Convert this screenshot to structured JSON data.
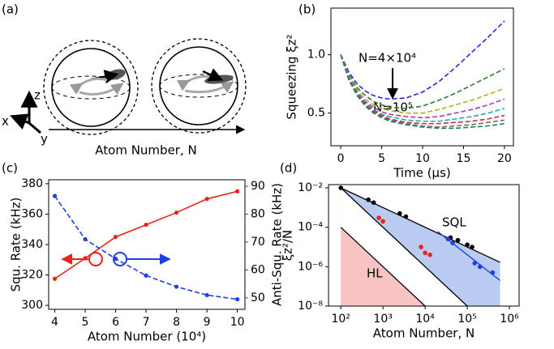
{
  "chart_data": [
    {
      "type": "diagram",
      "panel_label": "(a)",
      "axis_labels": [
        "x",
        "y",
        "z"
      ],
      "xlabel": "Atom Number, N"
    },
    {
      "type": "line",
      "panel_label": "(b)",
      "ylabel": "Squeezing ξz²",
      "xlabel": "Time (μs)",
      "x": [
        0,
        1,
        2,
        3,
        4,
        5,
        6,
        8,
        10,
        12,
        14,
        16,
        18,
        20
      ],
      "xlim": [
        -1.2,
        21.1
      ],
      "xticks": [
        0,
        5,
        10,
        15,
        20
      ],
      "ylim": [
        0.22,
        1.4
      ],
      "yticks": [
        0.5,
        {
          "value": 1.0,
          "label": "1.0"
        }
      ],
      "dashed": true,
      "annotations": [
        "N=4×10⁴",
        "N=10⁵"
      ],
      "series": [
        {
          "color": "#2a2ad0",
          "values": [
            1.0,
            0.85,
            0.75,
            0.69,
            0.65,
            0.63,
            0.62,
            0.63,
            0.68,
            0.77,
            0.89,
            1.02,
            1.15,
            1.29
          ]
        },
        {
          "color": "#2e7d32",
          "values": [
            1.0,
            0.83,
            0.72,
            0.65,
            0.6,
            0.57,
            0.55,
            0.54,
            0.56,
            0.61,
            0.67,
            0.74,
            0.81,
            0.88
          ]
        },
        {
          "color": "#b5b022",
          "values": [
            1.0,
            0.82,
            0.7,
            0.62,
            0.57,
            0.54,
            0.52,
            0.5,
            0.5,
            0.53,
            0.57,
            0.61,
            0.66,
            0.71
          ]
        },
        {
          "color": "#a040b0",
          "values": [
            1.0,
            0.81,
            0.68,
            0.6,
            0.55,
            0.51,
            0.49,
            0.47,
            0.46,
            0.47,
            0.5,
            0.53,
            0.57,
            0.62
          ]
        },
        {
          "color": "#20a8b8",
          "values": [
            1.0,
            0.8,
            0.67,
            0.59,
            0.53,
            0.49,
            0.47,
            0.44,
            0.43,
            0.43,
            0.45,
            0.47,
            0.5,
            0.54
          ]
        },
        {
          "color": "#c83030",
          "values": [
            1.0,
            0.79,
            0.66,
            0.58,
            0.52,
            0.48,
            0.45,
            0.42,
            0.41,
            0.41,
            0.42,
            0.43,
            0.45,
            0.48
          ]
        },
        {
          "color": "#707070",
          "values": [
            1.0,
            0.79,
            0.65,
            0.57,
            0.51,
            0.47,
            0.44,
            0.41,
            0.39,
            0.38,
            0.39,
            0.4,
            0.42,
            0.44
          ]
        },
        {
          "color": "#1f7f60",
          "values": [
            1.0,
            0.78,
            0.65,
            0.56,
            0.5,
            0.46,
            0.43,
            0.4,
            0.38,
            0.37,
            0.37,
            0.38,
            0.39,
            0.41
          ]
        }
      ]
    },
    {
      "type": "line",
      "panel_label": "(c)",
      "xlabel": "Atom Number (10⁴)",
      "ylabel": "Squ. Rate (kHz)",
      "y2label": "Anti-Squ. Rate (kHz)",
      "x": [
        4,
        5,
        6,
        7,
        8,
        9,
        10
      ],
      "xlim": [
        3.8,
        10.25
      ],
      "xticks": [
        4,
        5,
        6,
        7,
        8,
        9,
        10
      ],
      "ylim": [
        297.4,
        382.6
      ],
      "yticks": [
        300,
        320,
        340,
        360,
        380
      ],
      "y2lim": [
        45.9,
        92.3
      ],
      "y2ticks": [
        50,
        60,
        70,
        80,
        90
      ],
      "series": [
        {
          "color": "#e8231c",
          "dashed": false,
          "values": [
            317.5,
            331,
            345,
            353,
            361,
            370,
            375
          ]
        },
        {
          "color": "#1f3fe0",
          "dashed": true,
          "axis": "y2",
          "values": [
            86.5,
            71,
            64,
            58,
            54,
            51,
            49.5
          ]
        }
      ]
    },
    {
      "type": "scatter",
      "panel_label": "(d)",
      "xlabel": "Atom Number, N",
      "ylabel": "ξz²/N",
      "log_x": true,
      "log_y": true,
      "xlim": [
        51,
        1700000
      ],
      "ylim": [
        1e-08,
        0.0146
      ],
      "xticks": [
        {
          "value": 100,
          "label": "10²"
        },
        {
          "value": 1000,
          "label": "10³"
        },
        {
          "value": 10000,
          "label": "10⁴"
        },
        {
          "value": 100000,
          "label": "10⁵"
        },
        {
          "value": 1000000,
          "label": "10⁶"
        }
      ],
      "yticks": [
        {
          "value": 1e-08,
          "label": "10⁻⁸"
        },
        {
          "value": 1e-06,
          "label": "10⁻⁶"
        },
        {
          "value": 0.0001,
          "label": "10⁻⁴"
        },
        {
          "value": 0.01,
          "label": "10⁻²"
        }
      ],
      "annotations": [
        "SQL",
        "HL"
      ],
      "lines": [
        {
          "color": "#000000",
          "fill_below": "#b9cbf1",
          "x": [
            100,
            600000
          ],
          "values": [
            0.01,
            1.667e-06
          ]
        },
        {
          "color": "#000000",
          "fill_below": "#ffffff",
          "x": [
            100,
            100000
          ],
          "values": [
            0.01,
            1e-08
          ]
        },
        {
          "color": "#000000",
          "fill_below": "#f7c3c3",
          "x": [
            100,
            10000
          ],
          "values": [
            0.0001,
            1e-08
          ]
        },
        {
          "color": "#1f3fe0",
          "x": [
            20000,
            600000
          ],
          "values": [
            6e-05,
            2e-07
          ]
        }
      ],
      "series": [
        {
          "color": "#000000",
          "x": [
            100,
            450,
            600,
            2500,
            3500,
            40000,
            60000,
            100000,
            130000
          ],
          "values": [
            0.01,
            0.0025,
            0.0018,
            0.0005,
            0.00035,
            3e-05,
            2.2e-05,
            1.3e-05,
            1e-05
          ]
        },
        {
          "color": "#e8231c",
          "x": [
            800,
            1000,
            8000,
            10000,
            13000
          ],
          "values": [
            0.0003,
            0.0002,
            1e-05,
            5e-06,
            4e-06
          ]
        },
        {
          "color": "#1f3fe0",
          "x": [
            35000,
            45000,
            150000,
            200000,
            400000
          ],
          "values": [
            2.5e-05,
            1.6e-05,
            1.5e-06,
            1e-06,
            5e-07
          ]
        }
      ]
    }
  ]
}
